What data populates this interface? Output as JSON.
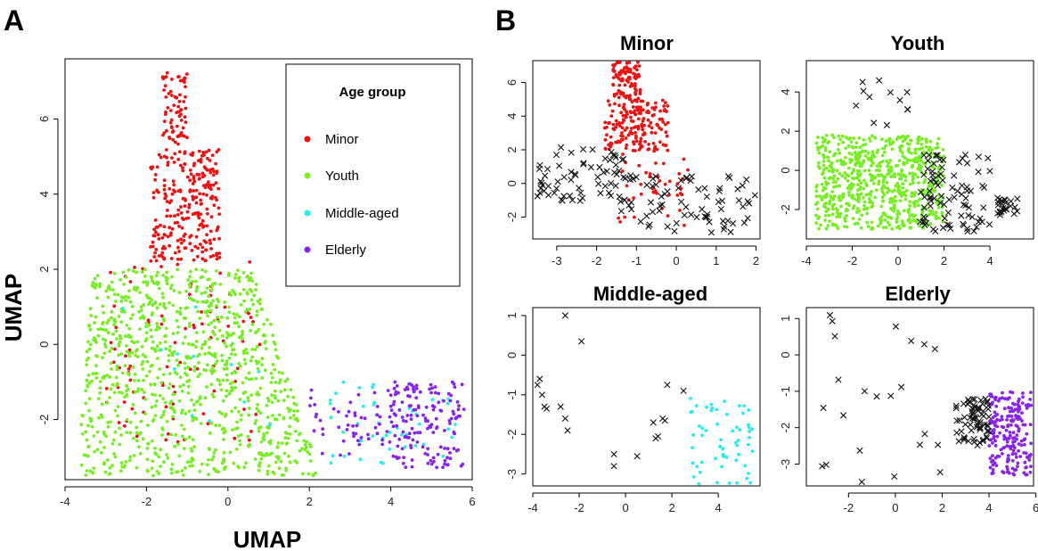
{
  "panels": {
    "a": "A",
    "b": "B"
  },
  "colors": {
    "Minor": "#ee1111",
    "Youth": "#77ee22",
    "Middle-aged": "#22eeee",
    "Elderly": "#8822ee",
    "other": "#111111"
  },
  "chart_data": [
    {
      "id": "A",
      "type": "scatter",
      "title": "",
      "xlabel": "UMAP",
      "ylabel": "UMAP",
      "xlim": [
        -4,
        6
      ],
      "ylim": [
        -3.6,
        7.6
      ],
      "xticks": [
        -4,
        -2,
        0,
        2,
        4,
        6
      ],
      "yticks": [
        -2,
        0,
        2,
        4,
        6
      ],
      "legend": {
        "title": "Age group",
        "placement": "top-right",
        "entries": [
          "Minor",
          "Youth",
          "Middle-aged",
          "Elderly"
        ]
      },
      "groups": [
        {
          "name": "Minor",
          "n": 420,
          "regions": [
            [
              -1.6,
              -1.0,
              5.0,
              7.3,
              0.18
            ],
            [
              -1.9,
              -0.2,
              2.2,
              5.2,
              0.6
            ],
            [
              -3.0,
              0.8,
              -2.6,
              2.2,
              0.22
            ]
          ]
        },
        {
          "name": "Youth",
          "n": 1000,
          "regions": [
            [
              -3.7,
              2.3,
              -3.5,
              2.0,
              1
            ]
          ]
        },
        {
          "name": "Middle-aged",
          "n": 60,
          "regions": [
            [
              2.5,
              5.6,
              -3.2,
              -1.0,
              0.8
            ],
            [
              -3.5,
              1.5,
              -3.2,
              1.0,
              0.2
            ]
          ]
        },
        {
          "name": "Elderly",
          "n": 200,
          "regions": [
            [
              4.0,
              5.8,
              -3.3,
              -1.0,
              0.75
            ],
            [
              2.0,
              4.0,
              -3.0,
              -1.2,
              0.25
            ]
          ]
        }
      ]
    },
    {
      "id": "B1",
      "type": "scatter",
      "title": "Minor",
      "focus": "Minor",
      "xlim": [
        -3.6,
        2.1
      ],
      "ylim": [
        -3.3,
        7.3
      ],
      "xticks": [
        -3,
        -2,
        -1,
        0,
        1,
        2
      ],
      "yticks": [
        -2,
        0,
        2,
        4,
        6
      ],
      "points_in_group": 300,
      "points_other": 140
    },
    {
      "id": "B2",
      "type": "scatter",
      "title": "Youth",
      "focus": "Youth",
      "xlim": [
        -4,
        5.9
      ],
      "ylim": [
        -3.5,
        5.6
      ],
      "xticks": [
        -4,
        -2,
        0,
        2,
        4
      ],
      "yticks": [
        -2,
        0,
        2,
        4
      ],
      "points_in_group": 700,
      "points_other": 120
    },
    {
      "id": "B3",
      "type": "scatter",
      "title": "Middle-aged",
      "focus": "Middle-aged",
      "xlim": [
        -4,
        5.8
      ],
      "ylim": [
        -3.3,
        1.2
      ],
      "xticks": [
        -4,
        -2,
        0,
        2,
        4
      ],
      "yticks": [
        -3,
        -2,
        -1,
        0,
        1
      ],
      "points_in_group": 60,
      "crosses": [
        [
          -2.6,
          1.0
        ],
        [
          -1.9,
          0.35
        ],
        [
          -3.7,
          -0.6
        ],
        [
          -3.8,
          -0.75
        ],
        [
          -3.6,
          -1.0
        ],
        [
          -3.5,
          -1.3
        ],
        [
          -3.4,
          -1.35
        ],
        [
          -2.8,
          -1.3
        ],
        [
          -2.6,
          -1.6
        ],
        [
          -2.5,
          -1.9
        ],
        [
          1.8,
          -0.75
        ],
        [
          2.5,
          -0.9
        ],
        [
          1.2,
          -1.7
        ],
        [
          1.6,
          -1.6
        ],
        [
          1.7,
          -1.65
        ],
        [
          1.4,
          -2.05
        ],
        [
          1.3,
          -2.1
        ],
        [
          -0.5,
          -2.5
        ],
        [
          -0.5,
          -2.8
        ],
        [
          0.5,
          -2.55
        ]
      ]
    },
    {
      "id": "B4",
      "type": "scatter",
      "title": "Elderly",
      "focus": "Elderly",
      "xlim": [
        -3.8,
        5.9
      ],
      "ylim": [
        -3.6,
        1.3
      ],
      "xticks": [
        -2,
        0,
        2,
        4,
        6
      ],
      "yticks": [
        -3,
        -2,
        -1,
        0,
        1
      ],
      "points_in_group": 200,
      "points_other": 90
    }
  ]
}
